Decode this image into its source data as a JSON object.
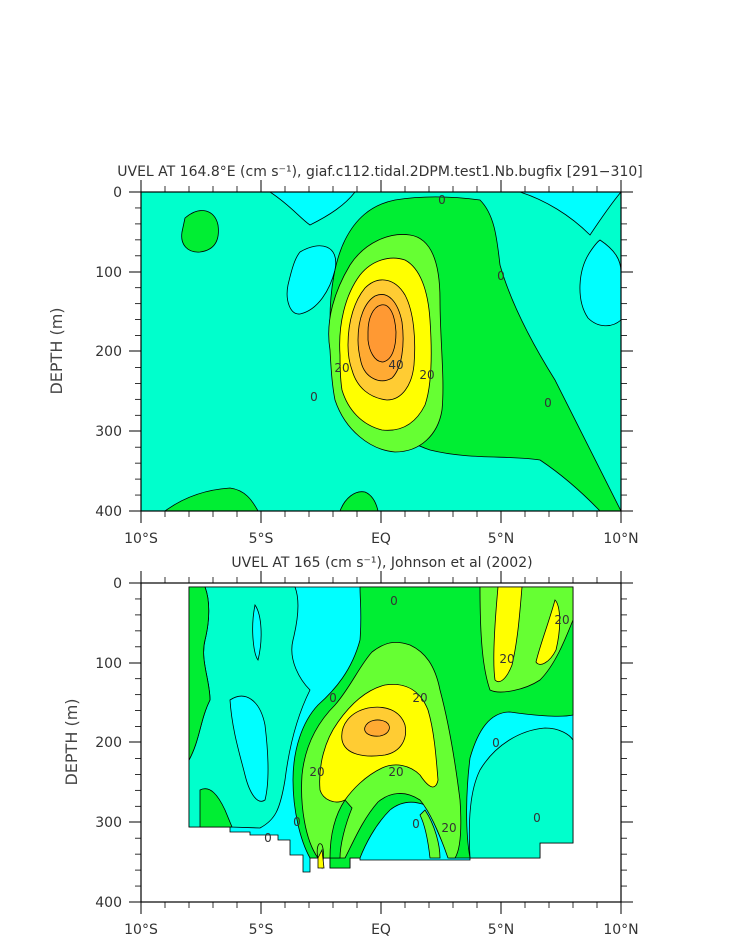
{
  "colors": {
    "cyan": "#00ffff",
    "aqua": "#00ffcc",
    "green": "#00ee33",
    "lightgreen": "#66ff33",
    "yellow": "#ffff00",
    "lightorange": "#ffcc33",
    "orange": "#ff9933"
  },
  "chart_data": [
    {
      "type": "contour",
      "title": "UVEL AT 164.8°E (cm s⁻¹), giaf.c112.tidal.2DPM.test1.Nb.bugfix [291−310]",
      "xlabel": "",
      "ylabel": "DEPTH (m)",
      "x_ticks": [
        "10°S",
        "5°S",
        "EQ",
        "5°N",
        "10°N"
      ],
      "y_ticks": [
        "0",
        "100",
        "200",
        "300",
        "400"
      ],
      "ylim": [
        400,
        0
      ],
      "xlim": [
        -10,
        10
      ],
      "contour_levels": [
        -10,
        0,
        10,
        20,
        30,
        40,
        50
      ],
      "labels_shown": [
        "0",
        "0",
        "0",
        "0",
        "20",
        "20",
        "40"
      ],
      "core": {
        "lat": 0,
        "depth": 175,
        "max": 50
      }
    },
    {
      "type": "contour",
      "title": "UVEL AT 165 (cm s⁻¹), Johnson et al (2002)",
      "xlabel": "",
      "ylabel": "DEPTH (m)",
      "x_ticks": [
        "10°S",
        "5°S",
        "EQ",
        "5°N",
        "10°N"
      ],
      "y_ticks": [
        "0",
        "100",
        "200",
        "300",
        "400"
      ],
      "ylim": [
        400,
        0
      ],
      "xlim": [
        -10,
        10
      ],
      "data_xrange": [
        -8,
        8
      ],
      "contour_levels": [
        -10,
        0,
        10,
        20,
        30,
        40
      ],
      "labels_shown": [
        "0",
        "0",
        "0",
        "0",
        "0",
        "0",
        "0",
        "20",
        "20",
        "20",
        "20",
        "20",
        "20"
      ],
      "core": {
        "lat": 0,
        "depth": 190,
        "max": 40
      }
    }
  ]
}
